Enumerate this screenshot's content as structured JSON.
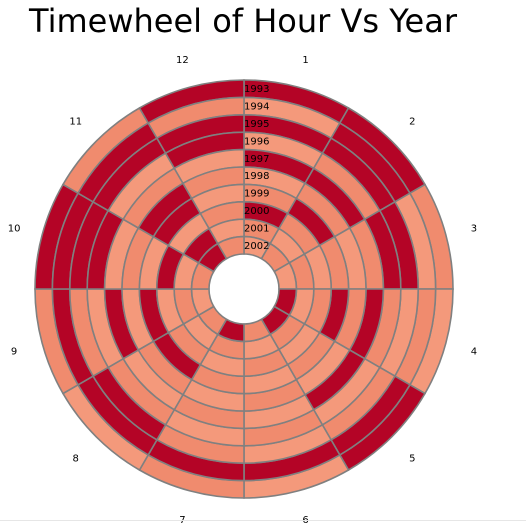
{
  "chart_data": {
    "type": "heatmap",
    "title": "Timewheel of Hour Vs Year",
    "hours": [
      "1",
      "2",
      "3",
      "4",
      "5",
      "6",
      "7",
      "8",
      "9",
      "10",
      "11",
      "12"
    ],
    "years": [
      "1993",
      "1994",
      "1995",
      "1996",
      "1997",
      "1998",
      "1999",
      "2000",
      "2001",
      "2002"
    ],
    "colors": {
      "high": "#b40426",
      "low": "#f08b6e",
      "mid": "#f4997b",
      "edge": "#808080"
    },
    "levels_by_year": {
      "1993": [
        1,
        1,
        0,
        0,
        1,
        0,
        0,
        0,
        0,
        1,
        0,
        1
      ],
      "1994": [
        0,
        1,
        0,
        0,
        1,
        1,
        1,
        1,
        1,
        1,
        1,
        0
      ],
      "1995": [
        1,
        1,
        1,
        0,
        0,
        0,
        0,
        1,
        0,
        1,
        1,
        1
      ],
      "1996": [
        0,
        0,
        1,
        0,
        0,
        0,
        0,
        0,
        0,
        1,
        0,
        1
      ],
      "1997": [
        1,
        1,
        0,
        1,
        1,
        0,
        0,
        0,
        1,
        0,
        0,
        0
      ],
      "1998": [
        0,
        0,
        0,
        0,
        0,
        0,
        0,
        0,
        0,
        0,
        1,
        0
      ],
      "1999": [
        0,
        1,
        0,
        1,
        0,
        0,
        0,
        1,
        1,
        0,
        1,
        0
      ],
      "2000": [
        1,
        0,
        0,
        0,
        0,
        0,
        0,
        0,
        0,
        1,
        0,
        0
      ],
      "2001": [
        0,
        0,
        0,
        0,
        0,
        0,
        0,
        0,
        0,
        0,
        1,
        0
      ],
      "2002": [
        0,
        0,
        0,
        1,
        1,
        0,
        1,
        0,
        0,
        0,
        1,
        0
      ]
    }
  }
}
